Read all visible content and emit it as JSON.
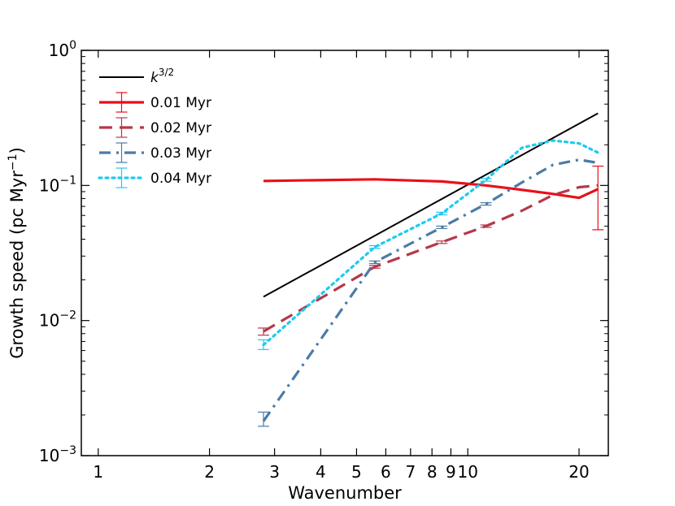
{
  "chart_data": {
    "type": "line",
    "xscale": "log",
    "yscale": "log",
    "xlim": [
      0.9,
      24
    ],
    "ylim": [
      0.001,
      1
    ],
    "xlabel": "Wavenumber",
    "ylabel": "Growth speed (pc Myr",
    "ylabel_sup": "−1",
    "ylabel_end": ")",
    "x_ticks": [
      {
        "value": 1,
        "label": "1"
      },
      {
        "value": 2,
        "label": "2"
      },
      {
        "value": 3,
        "label": "3"
      },
      {
        "value": 4,
        "label": "4"
      },
      {
        "value": 5,
        "label": "5"
      },
      {
        "value": 6,
        "label": "6"
      },
      {
        "value": 7,
        "label": "7"
      },
      {
        "value": 8,
        "label": "8"
      },
      {
        "value": 9,
        "label": "9"
      },
      {
        "value": 10,
        "label": "10"
      },
      {
        "value": 20,
        "label": "20"
      }
    ],
    "y_ticks": [
      {
        "value": 0.001,
        "base": "10",
        "exp": "−3"
      },
      {
        "value": 0.01,
        "base": "10",
        "exp": "−2"
      },
      {
        "value": 0.1,
        "base": "10",
        "exp": "−1"
      },
      {
        "value": 1,
        "base": "10",
        "exp": "0"
      }
    ],
    "legend": {
      "position": "top-left"
    },
    "series": [
      {
        "name": "k^{3/2}",
        "legend_main": "k",
        "legend_sup": "3/2",
        "color": "#000000",
        "style": "solid",
        "width": 2,
        "errorbar": false,
        "x": [
          2.8,
          22.5
        ],
        "y": [
          0.015,
          0.342
        ]
      },
      {
        "name": "0.01 Myr",
        "color": "#e8101a",
        "style": "solid",
        "width": 3.2,
        "errorbar": true,
        "x": [
          2.8,
          5.6,
          8.5,
          11.2,
          13.5,
          16.8,
          20.0,
          22.5
        ],
        "y": [
          0.108,
          0.111,
          0.107,
          0.1,
          0.094,
          0.087,
          0.081,
          0.094
        ],
        "err_points": [
          {
            "x": 22.5,
            "y": 0.094,
            "lo": 0.047,
            "hi": 0.139
          }
        ]
      },
      {
        "name": "0.02 Myr",
        "color": "#b5384b",
        "style": "dashed",
        "width": 3.2,
        "errorbar": true,
        "x": [
          2.8,
          5.6,
          8.5,
          11.2,
          14.0,
          17.0,
          20.0,
          22.5
        ],
        "y": [
          0.0083,
          0.025,
          0.038,
          0.05,
          0.065,
          0.085,
          0.097,
          0.1
        ],
        "err_points": [
          {
            "x": 2.8,
            "y": 0.0083,
            "lo": 0.0078,
            "hi": 0.0088
          },
          {
            "x": 5.6,
            "y": 0.025,
            "lo": 0.0244,
            "hi": 0.0256
          },
          {
            "x": 8.5,
            "y": 0.038,
            "lo": 0.0372,
            "hi": 0.0388
          },
          {
            "x": 11.2,
            "y": 0.05,
            "lo": 0.049,
            "hi": 0.051
          }
        ]
      },
      {
        "name": "0.03 Myr",
        "color": "#4a7ba6",
        "style": "dashdot",
        "width": 3.2,
        "errorbar": true,
        "x": [
          2.8,
          5.6,
          8.5,
          11.2,
          14.0,
          17.0,
          20.0,
          22.5
        ],
        "y": [
          0.0018,
          0.027,
          0.049,
          0.073,
          0.105,
          0.142,
          0.155,
          0.147
        ],
        "err_points": [
          {
            "x": 2.8,
            "y": 0.0018,
            "lo": 0.00165,
            "hi": 0.0021
          },
          {
            "x": 5.6,
            "y": 0.027,
            "lo": 0.0264,
            "hi": 0.0276
          },
          {
            "x": 8.5,
            "y": 0.049,
            "lo": 0.048,
            "hi": 0.05
          },
          {
            "x": 11.2,
            "y": 0.073,
            "lo": 0.0715,
            "hi": 0.0745
          }
        ]
      },
      {
        "name": "0.04 Myr",
        "color": "#1ecaf0",
        "style": "dotted",
        "width": 3.2,
        "errorbar": true,
        "x": [
          2.8,
          5.6,
          8.5,
          11.2,
          14.0,
          17.0,
          20.0,
          22.5
        ],
        "y": [
          0.0066,
          0.035,
          0.062,
          0.11,
          0.19,
          0.215,
          0.205,
          0.175
        ],
        "err_points": [
          {
            "x": 2.8,
            "y": 0.0066,
            "lo": 0.0061,
            "hi": 0.0072
          },
          {
            "x": 5.6,
            "y": 0.035,
            "lo": 0.0342,
            "hi": 0.0358
          },
          {
            "x": 8.5,
            "y": 0.062,
            "lo": 0.0606,
            "hi": 0.0634
          },
          {
            "x": 11.2,
            "y": 0.11,
            "lo": 0.1075,
            "hi": 0.1125
          }
        ]
      }
    ]
  }
}
